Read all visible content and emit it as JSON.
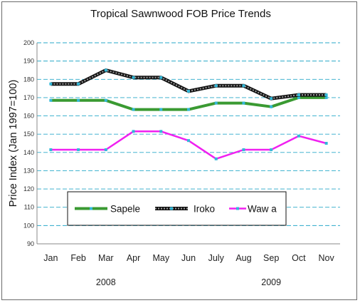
{
  "chart_data": {
    "type": "line",
    "title": "Tropical Sawnwood FOB Price Trends",
    "ylabel": "Price Index (Jan 1997=100)",
    "xlabel": "",
    "ylim": [
      90,
      200
    ],
    "yticks": [
      90,
      100,
      110,
      120,
      130,
      140,
      150,
      160,
      170,
      180,
      190,
      200
    ],
    "grid": "horizontal dashed",
    "categories": [
      "Jan",
      "Feb",
      "Mar",
      "Apr",
      "May",
      "Jun",
      "July",
      "Aug",
      "Sep",
      "Oct",
      "Nov"
    ],
    "year_labels": [
      {
        "label": "2008",
        "under": "Mar"
      },
      {
        "label": "2009",
        "under": "Sep"
      }
    ],
    "legend_position": "lower-center",
    "series": [
      {
        "name": "Sapele",
        "color": "#3a9a32",
        "style": "solid",
        "values": [
          168.5,
          168.5,
          168.5,
          163.5,
          163.5,
          163.5,
          167,
          167,
          165,
          170,
          170
        ]
      },
      {
        "name": "Iroko",
        "color": "#333333",
        "style": "checkered",
        "values": [
          177.5,
          177.5,
          185,
          181,
          181,
          173.5,
          176.5,
          176.5,
          169.5,
          171.5,
          171.5
        ]
      },
      {
        "name": "Waw a",
        "color": "#f020f0",
        "style": "solid",
        "values": [
          141.5,
          141.5,
          141.5,
          151.5,
          151.5,
          146.5,
          136.5,
          141.5,
          141.5,
          149,
          145
        ]
      }
    ],
    "marker_color": "#33b8d8"
  }
}
